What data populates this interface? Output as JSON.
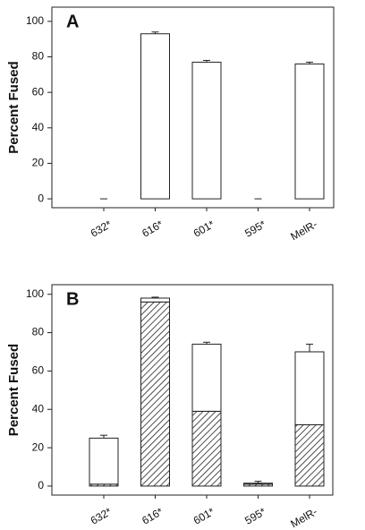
{
  "chart_data": [
    {
      "type": "bar",
      "title": "A",
      "ylabel": "Percent Fused",
      "categories": [
        "632*",
        "616*",
        "601*",
        "595*",
        "MelR-"
      ],
      "series": [
        {
          "color": "#ffffff",
          "values": [
            0,
            93,
            77,
            0,
            76
          ],
          "errors": [
            0,
            1,
            1,
            0,
            1
          ]
        }
      ],
      "ylim": [
        -5,
        108
      ],
      "yticks": [
        0,
        20,
        40,
        60,
        80,
        100
      ]
    },
    {
      "type": "bar",
      "title": "B",
      "ylabel": "Percent Fused",
      "stacked": true,
      "categories": [
        "632*",
        "616*",
        "601*",
        "595*",
        "MelR-"
      ],
      "series": [
        {
          "color": "#222222",
          "hatch": true,
          "values": [
            1,
            96,
            39,
            1,
            32
          ],
          "errors": [
            0.5,
            0.5,
            2,
            0.5,
            6
          ]
        },
        {
          "color": "#ffffff",
          "values": [
            24,
            2,
            35,
            0.5,
            38
          ],
          "errors": [
            1.5,
            0.5,
            1,
            1,
            4
          ]
        }
      ],
      "ylim": [
        -4.7,
        105
      ],
      "yticks": [
        0,
        20,
        40,
        60,
        80,
        100
      ]
    }
  ]
}
